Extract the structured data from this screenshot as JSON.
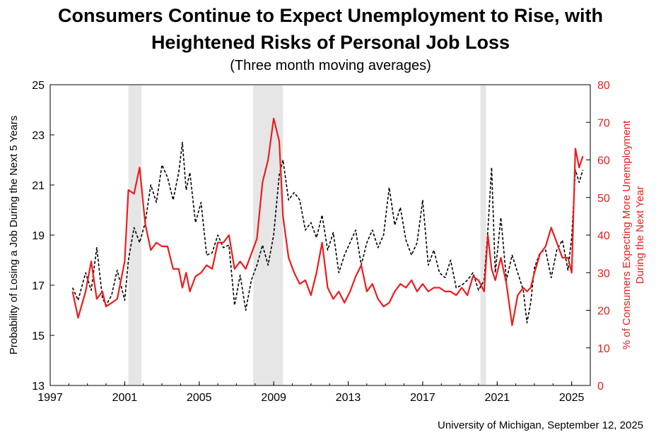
{
  "titles": {
    "line1": "Consumers Continue to Expect Unemployment to Rise, with",
    "line2": "Heightened Risks of Personal Job Loss",
    "subtitle": "(Three month moving averages)"
  },
  "source": "University of Michigan, September 12, 2025",
  "chart_data": {
    "type": "line",
    "xlim": [
      1997.0,
      2026.0
    ],
    "x_ticks": [
      "1997",
      "2001",
      "2005",
      "2009",
      "2013",
      "2017",
      "2021",
      "2025"
    ],
    "y_left": {
      "label": "Probability of Losing a Job During the Next 5 Years",
      "lim": [
        13,
        25
      ],
      "ticks": [
        "13",
        "15",
        "17",
        "19",
        "21",
        "23",
        "25"
      ]
    },
    "y_right": {
      "label_line1": "% of Consumers Expecting More Unemployment",
      "label_line2": "During the Next Year",
      "lim": [
        0,
        80
      ],
      "ticks": [
        "0",
        "10",
        "20",
        "30",
        "40",
        "50",
        "60",
        "70",
        "80"
      ]
    },
    "recessions": [
      [
        2001.2,
        2001.9
      ],
      [
        2007.9,
        2009.5
      ],
      [
        2020.1,
        2020.4
      ]
    ],
    "series": [
      {
        "axis": "left",
        "style": "dashed",
        "color": "#000000",
        "x": [
          1998.2,
          1998.5,
          1998.9,
          1999.2,
          1999.5,
          1999.8,
          2000.0,
          2000.3,
          2000.6,
          2001.0,
          2001.2,
          2001.5,
          2001.8,
          2002.1,
          2002.4,
          2002.7,
          2003.0,
          2003.3,
          2003.6,
          2003.9,
          2004.1,
          2004.3,
          2004.5,
          2004.8,
          2005.1,
          2005.4,
          2005.7,
          2006.0,
          2006.3,
          2006.6,
          2006.9,
          2007.2,
          2007.5,
          2007.8,
          2008.1,
          2008.4,
          2008.7,
          2009.0,
          2009.3,
          2009.5,
          2009.8,
          2010.1,
          2010.4,
          2010.7,
          2011.0,
          2011.3,
          2011.6,
          2011.9,
          2012.2,
          2012.5,
          2012.8,
          2013.1,
          2013.4,
          2013.7,
          2014.0,
          2014.3,
          2014.6,
          2014.9,
          2015.2,
          2015.5,
          2015.8,
          2016.1,
          2016.4,
          2016.7,
          2017.0,
          2017.3,
          2017.6,
          2017.9,
          2018.2,
          2018.5,
          2018.8,
          2019.1,
          2019.4,
          2019.7,
          2020.0,
          2020.3,
          2020.5,
          2020.7,
          2020.9,
          2021.2,
          2021.5,
          2021.8,
          2022.1,
          2022.4,
          2022.6,
          2022.8,
          2023.0,
          2023.3,
          2023.6,
          2023.9,
          2024.2,
          2024.5,
          2024.8,
          2025.0,
          2025.2,
          2025.4,
          2025.6
        ],
        "values": [
          16.9,
          16.4,
          17.5,
          16.8,
          18.5,
          16.5,
          16.2,
          16.6,
          17.6,
          16.4,
          18.0,
          19.3,
          18.7,
          19.5,
          21.0,
          20.3,
          21.8,
          21.3,
          20.4,
          21.5,
          22.7,
          20.8,
          21.5,
          19.5,
          20.3,
          18.2,
          18.3,
          19.0,
          18.5,
          18.6,
          16.2,
          17.4,
          16.0,
          17.2,
          17.8,
          18.6,
          17.8,
          19.0,
          21.4,
          22.0,
          20.4,
          20.7,
          20.4,
          19.2,
          19.5,
          18.9,
          19.8,
          18.4,
          19.1,
          17.5,
          18.2,
          18.7,
          19.2,
          17.8,
          18.7,
          19.2,
          18.5,
          19.0,
          20.9,
          19.4,
          20.1,
          18.8,
          18.2,
          18.7,
          20.4,
          17.8,
          18.4,
          17.5,
          17.3,
          18.0,
          16.9,
          17.0,
          17.2,
          17.5,
          16.8,
          17.2,
          19.2,
          21.7,
          17.5,
          19.7,
          17.2,
          18.2,
          17.5,
          16.8,
          15.5,
          16.3,
          17.7,
          18.3,
          18.4,
          17.3,
          18.4,
          18.8,
          17.6,
          18.9,
          21.6,
          21.1,
          21.6
        ]
      },
      {
        "axis": "right",
        "style": "solid",
        "color": "#ee1c1c",
        "x": [
          1998.2,
          1998.5,
          1998.9,
          1999.2,
          1999.5,
          1999.8,
          2000.0,
          2000.3,
          2000.6,
          2001.0,
          2001.2,
          2001.5,
          2001.8,
          2002.1,
          2002.4,
          2002.7,
          2003.0,
          2003.3,
          2003.6,
          2003.9,
          2004.1,
          2004.3,
          2004.5,
          2004.8,
          2005.1,
          2005.4,
          2005.7,
          2006.0,
          2006.3,
          2006.6,
          2006.9,
          2007.2,
          2007.5,
          2007.8,
          2008.1,
          2008.4,
          2008.7,
          2009.0,
          2009.3,
          2009.5,
          2009.8,
          2010.1,
          2010.4,
          2010.7,
          2011.0,
          2011.3,
          2011.6,
          2011.9,
          2012.2,
          2012.5,
          2012.8,
          2013.1,
          2013.4,
          2013.7,
          2014.0,
          2014.3,
          2014.6,
          2014.9,
          2015.2,
          2015.5,
          2015.8,
          2016.1,
          2016.4,
          2016.7,
          2017.0,
          2017.3,
          2017.6,
          2017.9,
          2018.2,
          2018.5,
          2018.8,
          2019.1,
          2019.4,
          2019.7,
          2020.0,
          2020.3,
          2020.5,
          2020.7,
          2020.9,
          2021.2,
          2021.5,
          2021.8,
          2022.1,
          2022.4,
          2022.6,
          2022.8,
          2023.0,
          2023.3,
          2023.6,
          2023.9,
          2024.2,
          2024.5,
          2024.8,
          2025.0,
          2025.2,
          2025.4,
          2025.6
        ],
        "values": [
          25,
          18,
          25,
          33,
          23,
          25,
          21,
          22,
          23,
          33,
          52,
          51,
          58,
          43,
          36,
          38,
          37,
          37,
          31,
          31,
          26,
          30,
          25,
          29,
          30,
          32,
          31,
          38,
          38,
          40,
          31,
          33,
          31,
          35,
          39,
          54,
          60,
          71,
          65,
          45,
          34,
          30,
          27,
          28,
          24,
          30,
          38,
          26,
          23,
          25,
          22,
          25,
          29,
          32,
          25,
          27,
          23,
          21,
          22,
          25,
          27,
          26,
          28,
          25,
          27,
          25,
          26,
          26,
          25,
          25,
          24,
          26,
          24,
          29,
          28,
          25,
          40,
          31,
          28,
          34,
          27,
          16,
          24,
          26,
          25,
          26,
          30,
          35,
          37,
          42,
          38,
          34,
          34,
          30,
          63,
          58,
          61
        ]
      }
    ]
  }
}
